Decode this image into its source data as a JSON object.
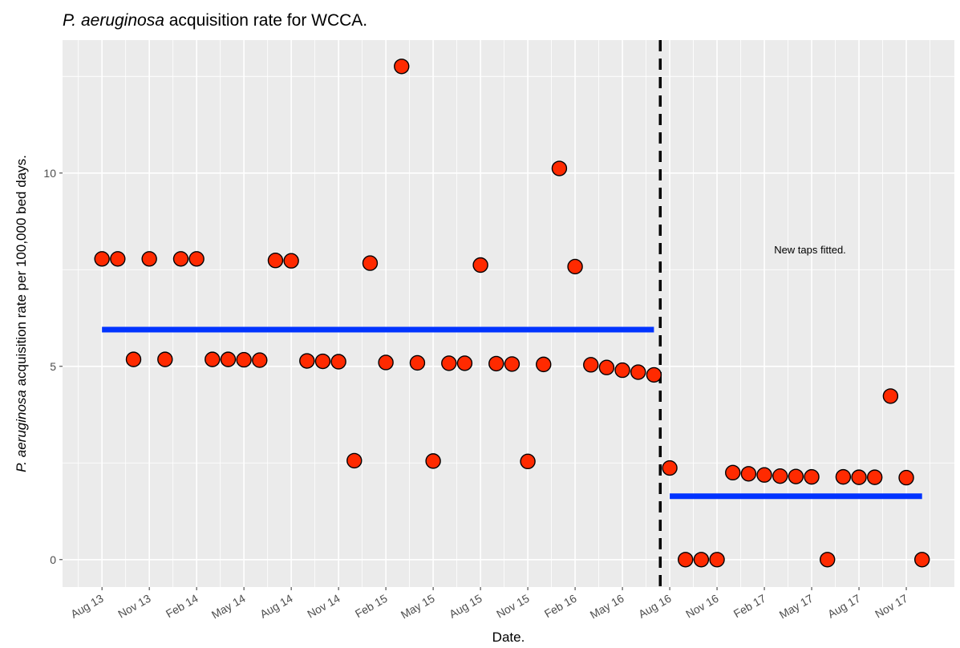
{
  "chart_data": {
    "type": "scatter",
    "title": [
      "P. aeruginosa",
      " acquisition rate for WCCA."
    ],
    "x_label": "Date.",
    "y_label": [
      "P. aeruginosa",
      " acquisition rate per 100,000 bed days."
    ],
    "annotation": "New taps fitted.",
    "categories": [
      "Aug 13",
      null,
      null,
      "Nov 13",
      null,
      null,
      "Feb 14",
      null,
      null,
      "May 14",
      null,
      null,
      "Aug 14",
      null,
      null,
      "Nov 14",
      null,
      null,
      "Feb 15",
      null,
      null,
      "May 15",
      null,
      null,
      "Aug 15",
      null,
      null,
      "Nov 15",
      null,
      null,
      "Feb 16",
      null,
      null,
      "May 16",
      null,
      null,
      "Aug 16",
      null,
      null,
      "Nov 16",
      null,
      null,
      "Feb 17",
      null,
      null,
      "May 17",
      null,
      null,
      "Aug 17",
      null,
      null,
      "Nov 17",
      null
    ],
    "values": [
      7.78,
      7.78,
      5.18,
      7.78,
      5.18,
      7.78,
      7.78,
      5.18,
      5.18,
      5.17,
      5.16,
      7.74,
      7.73,
      5.14,
      5.13,
      5.12,
      2.56,
      7.67,
      5.1,
      12.76,
      5.09,
      2.55,
      5.08,
      5.08,
      7.62,
      5.07,
      5.06,
      2.54,
      5.05,
      10.12,
      7.58,
      5.04,
      4.97,
      4.9,
      4.85,
      4.78,
      2.37,
      0,
      0,
      0,
      2.25,
      2.22,
      2.19,
      2.16,
      2.15,
      2.14,
      0,
      2.14,
      2.13,
      2.13,
      4.23,
      2.12,
      0
    ],
    "color": "#ff2a00",
    "segments": [
      {
        "from": 0,
        "to": 35,
        "value": 5.95,
        "color": "#0033ff"
      },
      {
        "from": 36,
        "to": 52,
        "value": 1.64,
        "color": "#0033ff"
      }
    ],
    "vline": 35.4,
    "xlim": [
      -2.5,
      54.05
    ],
    "ylim": [
      -0.71,
      13.44
    ],
    "yticks": [
      0,
      5,
      10
    ],
    "grid": true
  }
}
